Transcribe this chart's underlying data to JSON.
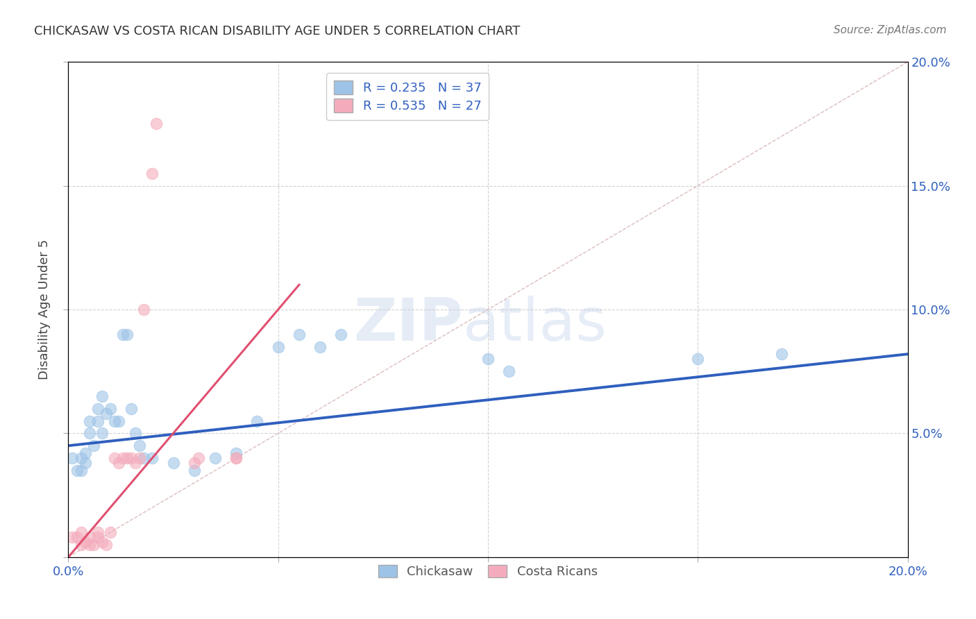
{
  "title": "CHICKASAW VS COSTA RICAN DISABILITY AGE UNDER 5 CORRELATION CHART",
  "source": "Source: ZipAtlas.com",
  "ylabel": "Disability Age Under 5",
  "watermark": "ZIPatlas",
  "chickasaw_R": 0.235,
  "chickasaw_N": 37,
  "costarican_R": 0.535,
  "costarican_N": 27,
  "chickasaw_color": "#9dc3e6",
  "costarican_color": "#f4acbc",
  "blue_line_color": "#2f5fbe",
  "red_line_color": "#e05070",
  "diag_line_color": "#d8b4b4",
  "xlim": [
    0.0,
    0.2
  ],
  "ylim": [
    0.0,
    0.2
  ],
  "yticks": [
    0.0,
    0.05,
    0.1,
    0.15,
    0.2
  ],
  "xticks": [
    0.0,
    0.05,
    0.1,
    0.15,
    0.2
  ],
  "right_ytick_labels": [
    "",
    "5.0%",
    "10.0%",
    "15.0%",
    "20.0%"
  ],
  "xtick_labels": [
    "0.0%",
    "",
    "",
    "",
    "20.0%"
  ],
  "chickasaw_x": [
    0.001,
    0.002,
    0.003,
    0.003,
    0.004,
    0.004,
    0.005,
    0.005,
    0.006,
    0.007,
    0.007,
    0.008,
    0.008,
    0.009,
    0.01,
    0.011,
    0.012,
    0.013,
    0.014,
    0.015,
    0.016,
    0.017,
    0.018,
    0.02,
    0.025,
    0.03,
    0.035,
    0.04,
    0.045,
    0.05,
    0.055,
    0.06,
    0.065,
    0.1,
    0.105,
    0.15,
    0.17
  ],
  "chickasaw_y": [
    0.04,
    0.035,
    0.035,
    0.04,
    0.038,
    0.042,
    0.05,
    0.055,
    0.045,
    0.055,
    0.06,
    0.065,
    0.05,
    0.058,
    0.06,
    0.055,
    0.055,
    0.09,
    0.09,
    0.06,
    0.05,
    0.045,
    0.04,
    0.04,
    0.038,
    0.035,
    0.04,
    0.042,
    0.055,
    0.085,
    0.09,
    0.085,
    0.09,
    0.08,
    0.075,
    0.08,
    0.082
  ],
  "costarican_x": [
    0.001,
    0.002,
    0.003,
    0.003,
    0.004,
    0.005,
    0.005,
    0.006,
    0.007,
    0.007,
    0.008,
    0.009,
    0.01,
    0.011,
    0.012,
    0.013,
    0.014,
    0.015,
    0.016,
    0.017,
    0.018,
    0.03,
    0.031,
    0.04,
    0.04,
    0.02,
    0.021
  ],
  "costarican_y": [
    0.008,
    0.008,
    0.005,
    0.01,
    0.006,
    0.008,
    0.005,
    0.005,
    0.008,
    0.01,
    0.006,
    0.005,
    0.01,
    0.04,
    0.038,
    0.04,
    0.04,
    0.04,
    0.038,
    0.04,
    0.1,
    0.038,
    0.04,
    0.04,
    0.04,
    0.155,
    0.175
  ],
  "blue_line_x": [
    0.0,
    0.2
  ],
  "blue_line_y": [
    0.045,
    0.082
  ],
  "red_line_x": [
    0.0,
    0.055
  ],
  "red_line_y": [
    0.0,
    0.11
  ],
  "diag_line_x": [
    0.0,
    0.2
  ],
  "diag_line_y": [
    0.0,
    0.2
  ]
}
